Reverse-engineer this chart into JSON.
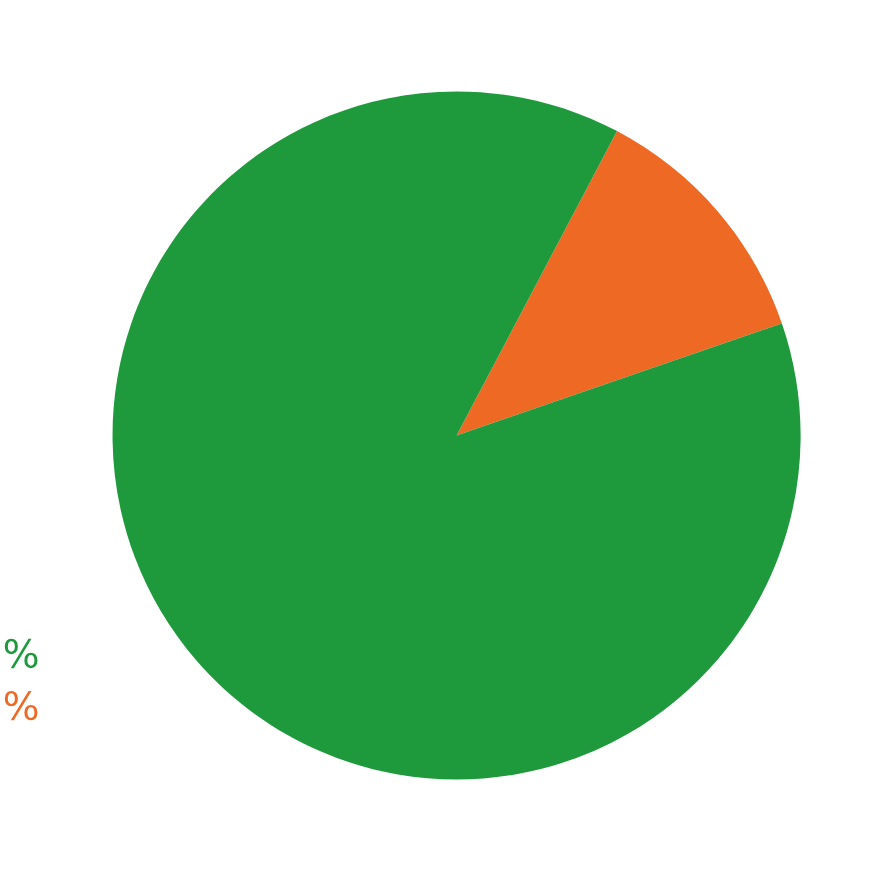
{
  "chart_data": {
    "type": "pie",
    "categories": [
      null,
      null
    ],
    "values": [
      12,
      88
    ],
    "colors": [
      "#ee6a24",
      "#1e9a3c"
    ],
    "annotations": [
      "%",
      "%"
    ]
  }
}
